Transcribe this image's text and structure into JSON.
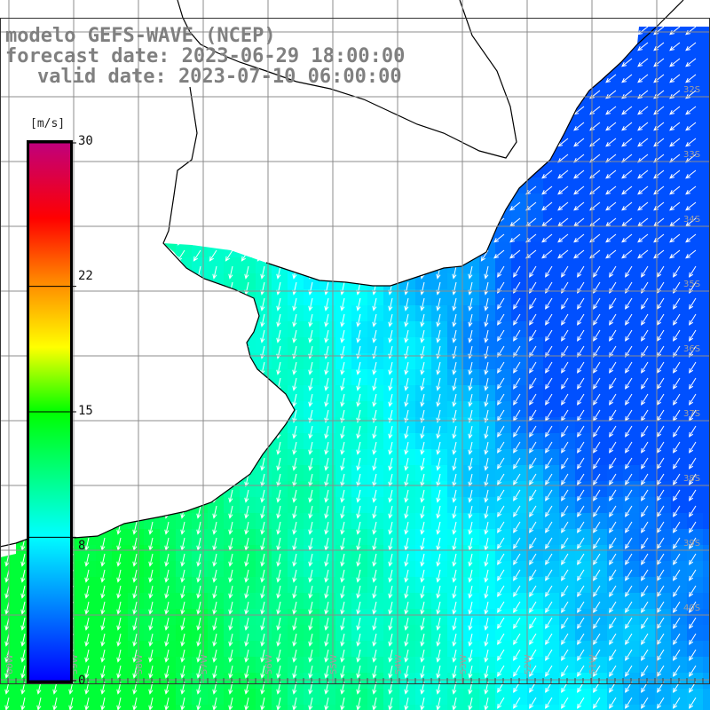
{
  "title": {
    "model": "modelo GEFS-WAVE (NCEP)",
    "forecast": "forecast date: 2023-06-29 18:00:00",
    "valid": "valid date: 2023-07-10 06:00:00"
  },
  "colorbar": {
    "unit": "[m/s]",
    "ticks": [
      "30",
      "22",
      "15",
      "8",
      "0"
    ],
    "tick_values": [
      30,
      22,
      15,
      8,
      0
    ],
    "range": [
      0,
      30
    ],
    "colors": [
      "#0000ff",
      "#00ffff",
      "#00ff00",
      "#ffff00",
      "#ff0000",
      "#c0007c"
    ]
  },
  "map": {
    "lat_labels": [
      "32S",
      "33S",
      "34S",
      "35S",
      "36S",
      "37S",
      "38S",
      "39S",
      "40S"
    ],
    "lon_labels": [
      "60W",
      "59W",
      "58W",
      "57W",
      "56W",
      "55W",
      "54W",
      "53W",
      "52W",
      "51W"
    ],
    "colors": {
      "land": "#ffffff",
      "coast": "#000000",
      "grid": "#8c8c8c",
      "arrow": "#ffffff",
      "label": "#a0a0a0"
    }
  }
}
